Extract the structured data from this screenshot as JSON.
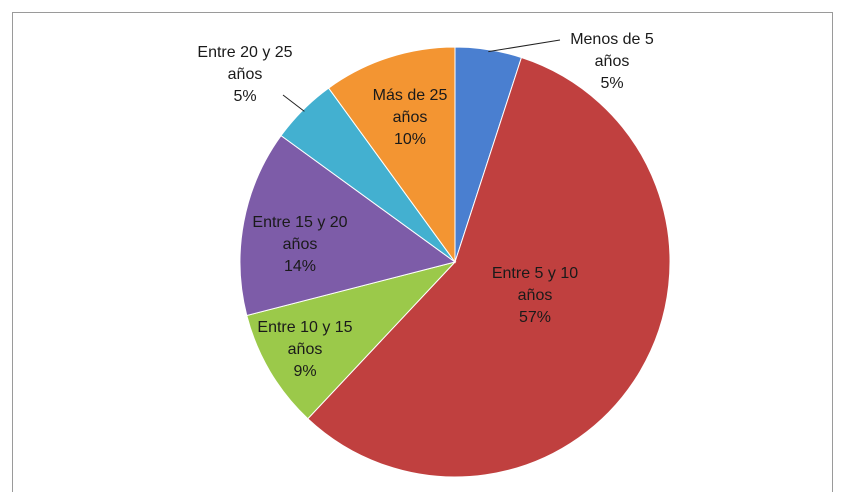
{
  "chart_data": {
    "type": "pie",
    "categories": [
      "Menos de 5 años",
      "Entre 5 y 10 años",
      "Entre 10 y 15 años",
      "Entre 15 y 20 años",
      "Entre 20 y 25 años",
      "Más de 25 años"
    ],
    "values": [
      5,
      57,
      9,
      14,
      5,
      10
    ],
    "value_labels": [
      "5%",
      "57%",
      "9%",
      "14%",
      "5%",
      "10%"
    ],
    "colors": [
      "#4a7fd0",
      "#c0403f",
      "#9bc94a",
      "#7d5ca8",
      "#43b0d0",
      "#f39532"
    ]
  }
}
